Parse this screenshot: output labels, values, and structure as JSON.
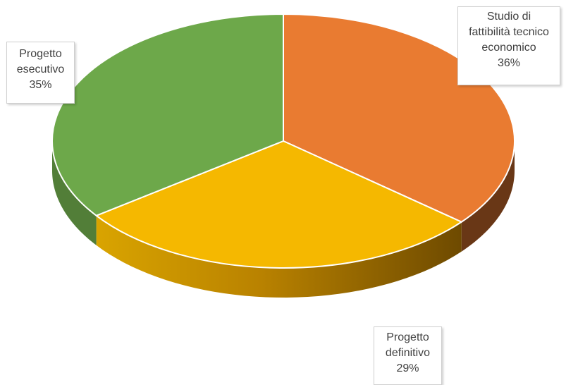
{
  "chart_data": {
    "type": "pie",
    "style": "3d",
    "start": "top, clockwise",
    "slices": [
      {
        "label": [
          "Studio di",
          "fattibilità tecnico",
          "economico"
        ],
        "value": 36,
        "value_label": "36%",
        "color": "#E97B31"
      },
      {
        "label": [
          "Progetto",
          "definitivo"
        ],
        "value": 29,
        "value_label": "29%",
        "color": "#F5B800"
      },
      {
        "label": [
          "Progetto",
          "esecutivo"
        ],
        "value": 35,
        "value_label": "35%",
        "color": "#6DA84A"
      }
    ],
    "legend": "none"
  }
}
